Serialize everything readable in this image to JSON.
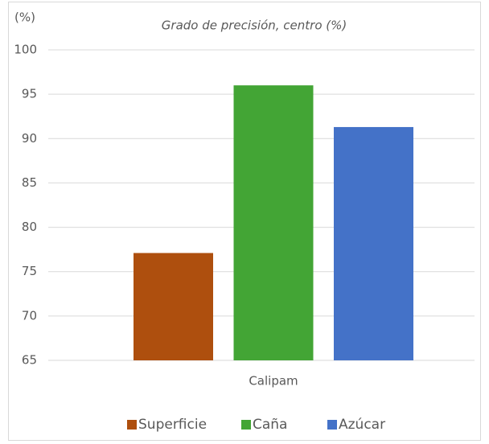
{
  "chart_data": {
    "type": "bar",
    "title": "Grado de precisión, centro (%)",
    "y_label": "(%)",
    "categories": [
      "Calipam"
    ],
    "series": [
      {
        "name": "Superficie",
        "color": "#ae4f0e",
        "values": [
          77.1
        ]
      },
      {
        "name": "Caña",
        "color": "#43a535",
        "values": [
          96.0
        ]
      },
      {
        "name": "Azúcar",
        "color": "#4472c8",
        "values": [
          91.3
        ]
      }
    ],
    "ylim": [
      65,
      100
    ],
    "yticks": [
      65,
      70,
      75,
      80,
      85,
      90,
      95,
      100
    ],
    "grid": true,
    "legend": "bottom"
  }
}
